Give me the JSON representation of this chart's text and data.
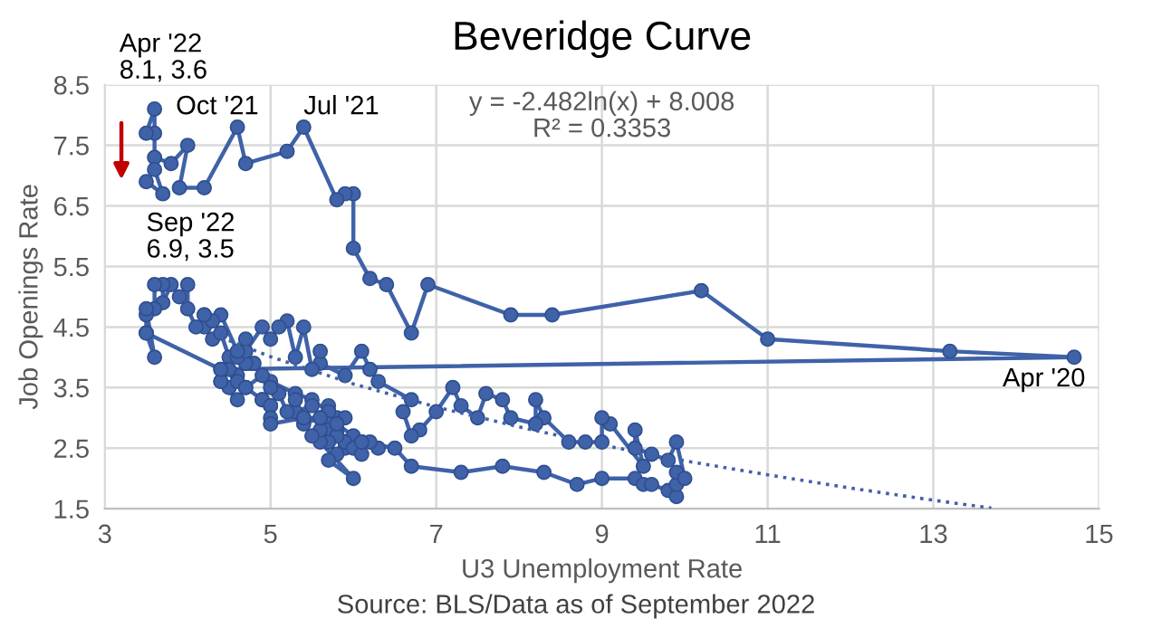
{
  "chart_data": {
    "type": "line",
    "title": "Beveridge Curve",
    "xlabel": "U3 Unemployment Rate",
    "ylabel": "Job Openings Rate",
    "xlim": [
      3,
      15
    ],
    "xticks": [
      3,
      5,
      7,
      9,
      11,
      13,
      15
    ],
    "ylim": [
      1.5,
      8.5
    ],
    "yticks": [
      1.5,
      2.5,
      3.5,
      4.5,
      5.5,
      6.5,
      7.5,
      8.5
    ],
    "grid": true,
    "series": [
      {
        "marker": "circle",
        "color": "#3f62a8",
        "x": [
          4.2,
          4.2,
          4.3,
          4.4,
          4.5,
          4.8,
          5.0,
          5.3,
          5.5,
          5.7,
          5.7,
          5.8,
          5.7,
          5.9,
          5.8,
          5.8,
          5.7,
          5.8,
          5.7,
          5.9,
          6.0,
          5.8,
          5.9,
          5.9,
          6.1,
          6.3,
          6.2,
          6.0,
          6.1,
          5.8,
          5.7,
          5.8,
          5.7,
          6.0,
          5.6,
          5.6,
          5.5,
          5.6,
          5.4,
          5.3,
          5.5,
          5.4,
          5.3,
          5.2,
          5.1,
          5.0,
          4.9,
          5.0,
          4.9,
          4.7,
          4.6,
          4.7,
          4.6,
          4.4,
          4.4,
          4.5,
          4.6,
          4.5,
          4.4,
          4.6,
          4.7,
          4.9,
          5.0,
          5.0,
          5.0,
          5.4,
          5.6,
          5.8,
          6.1,
          6.5,
          6.7,
          7.3,
          7.8,
          8.3,
          8.7,
          9.0,
          9.4,
          9.5,
          9.6,
          9.8,
          9.9,
          9.9,
          9.9,
          10.0,
          9.9,
          9.8,
          9.6,
          9.4,
          9.4,
          9.5,
          9.1,
          9.0,
          9.0,
          8.8,
          8.6,
          8.3,
          8.2,
          8.2,
          7.9,
          7.8,
          7.6,
          7.5,
          7.3,
          7.2,
          7.0,
          6.8,
          6.7,
          6.6,
          6.7,
          6.3,
          6.2,
          6.1,
          5.9,
          5.6,
          5.6,
          5.5,
          5.4,
          5.3,
          5.2,
          5.1,
          5.0,
          4.9,
          4.7,
          4.7,
          4.6,
          4.4,
          4.3,
          4.2,
          4.1,
          4.0,
          4.0,
          3.9,
          3.8,
          3.7,
          3.7,
          3.6,
          3.6,
          3.5,
          3.5,
          3.5,
          3.6,
          3.5,
          4.4,
          14.7,
          13.2,
          11.0,
          10.2,
          8.4,
          7.9,
          6.9,
          6.7,
          6.4,
          6.2,
          6.0,
          6.0,
          5.9,
          5.8,
          5.4,
          5.2,
          4.7,
          4.6,
          4.2,
          3.9,
          4.0,
          3.8,
          3.6,
          3.6,
          3.5,
          3.6,
          3.6,
          3.7,
          3.5
        ],
        "values": [
          4.7,
          4.5,
          4.3,
          4.4,
          4.0,
          3.9,
          3.6,
          3.4,
          3.3,
          3.1,
          3.2,
          3.0,
          3.1,
          3.0,
          2.9,
          2.8,
          2.9,
          2.7,
          2.8,
          2.6,
          2.7,
          2.7,
          2.5,
          2.6,
          2.6,
          2.5,
          2.6,
          2.5,
          2.4,
          2.7,
          2.6,
          2.4,
          2.3,
          2.0,
          2.6,
          2.8,
          2.7,
          3.0,
          2.9,
          3.1,
          3.2,
          3.0,
          3.3,
          3.1,
          3.4,
          3.2,
          3.3,
          3.5,
          3.7,
          3.5,
          3.7,
          3.9,
          4.0,
          3.8,
          3.6,
          3.5,
          3.6,
          3.8,
          3.6,
          3.3,
          3.5,
          3.3,
          3.2,
          3.0,
          2.9,
          3.0,
          3.0,
          2.9,
          2.6,
          2.5,
          2.2,
          2.1,
          2.2,
          2.1,
          1.9,
          2.0,
          2.0,
          1.9,
          1.9,
          1.8,
          1.7,
          1.9,
          2.1,
          2.0,
          2.6,
          2.3,
          2.4,
          2.5,
          2.8,
          2.2,
          2.9,
          3.0,
          2.6,
          2.6,
          2.6,
          3.0,
          3.3,
          2.9,
          3.0,
          3.3,
          3.4,
          3.0,
          3.2,
          3.5,
          3.1,
          2.8,
          2.7,
          3.1,
          3.3,
          3.6,
          3.8,
          4.1,
          3.7,
          3.9,
          4.1,
          3.8,
          4.5,
          4.0,
          4.6,
          4.5,
          4.3,
          4.5,
          4.1,
          4.3,
          4.1,
          4.7,
          4.6,
          4.7,
          4.5,
          4.8,
          5.2,
          5.0,
          5.2,
          4.9,
          5.2,
          5.2,
          4.8,
          4.7,
          4.4,
          4.8,
          4.0,
          4.4,
          3.8,
          4.0,
          4.1,
          4.3,
          5.1,
          4.7,
          4.7,
          5.2,
          4.4,
          5.2,
          5.3,
          5.8,
          6.7,
          6.7,
          6.6,
          7.8,
          7.4,
          7.2,
          7.8,
          6.8,
          6.8,
          7.5,
          7.2,
          7.3,
          7.7,
          7.7,
          8.1,
          7.1,
          6.7,
          6.9
        ]
      },
      {
        "marker": "none",
        "line_style": "dotted",
        "color": "#3f62a8",
        "x": [
          4.4,
          5,
          6,
          7,
          8,
          9,
          10,
          11,
          12,
          13,
          13.7
        ],
        "values": [
          4.33,
          4.01,
          3.56,
          3.18,
          2.85,
          2.55,
          2.29,
          2.06,
          1.84,
          1.64,
          1.51
        ]
      }
    ],
    "annotations": [
      "y = -2.482ln(x) + 8.008\nR² = 0.3353",
      "Source: BLS/Data as of September 2022",
      {
        "text": "Apr '22\n8.1, 3.6",
        "x": 3.6,
        "y": 8.1
      },
      {
        "text": "Sep '22\n6.9, 3.5",
        "x": 3.5,
        "y": 6.9
      },
      {
        "text": "Oct '21",
        "x": 4.6,
        "y": 7.8
      },
      {
        "text": "Jul '21",
        "x": 5.4,
        "y": 7.8
      },
      {
        "text": "Apr '20",
        "x": 14.7,
        "y": 4.0
      }
    ]
  }
}
